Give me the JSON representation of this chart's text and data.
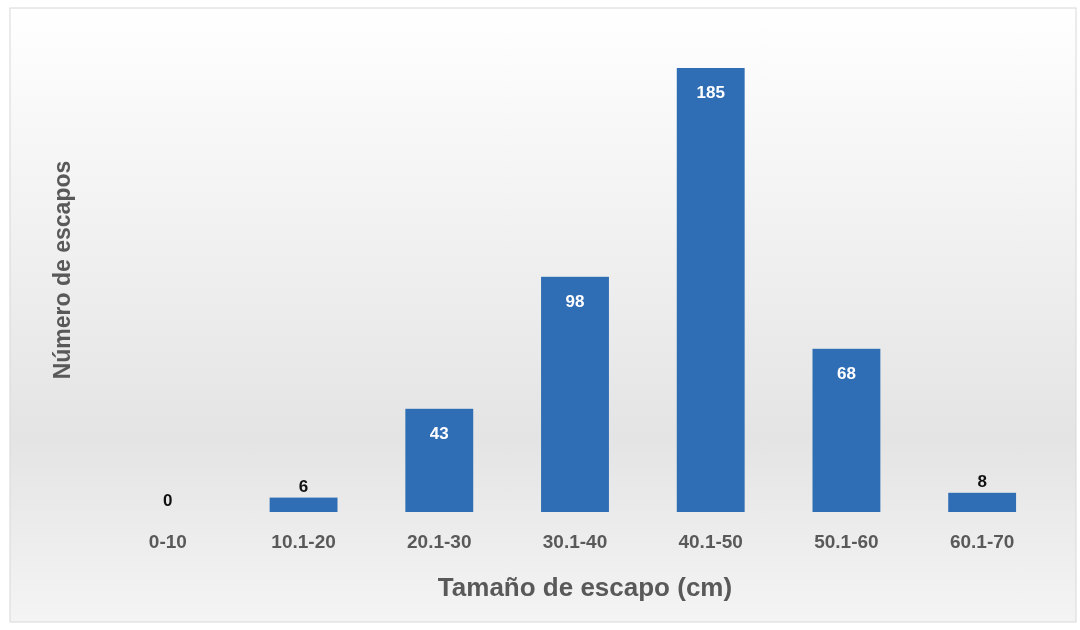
{
  "chart_data": {
    "type": "bar",
    "xlabel": "Tamaño de escapo (cm)",
    "ylabel": "Número de escapos",
    "categories": [
      "0-10",
      "10.1-20",
      "20.1-30",
      "30.1-40",
      "40.1-50",
      "50.1-60",
      "60.1-70"
    ],
    "values": [
      0,
      6,
      43,
      98,
      185,
      68,
      8
    ],
    "color": "#2f6db5",
    "data_labels": true
  }
}
